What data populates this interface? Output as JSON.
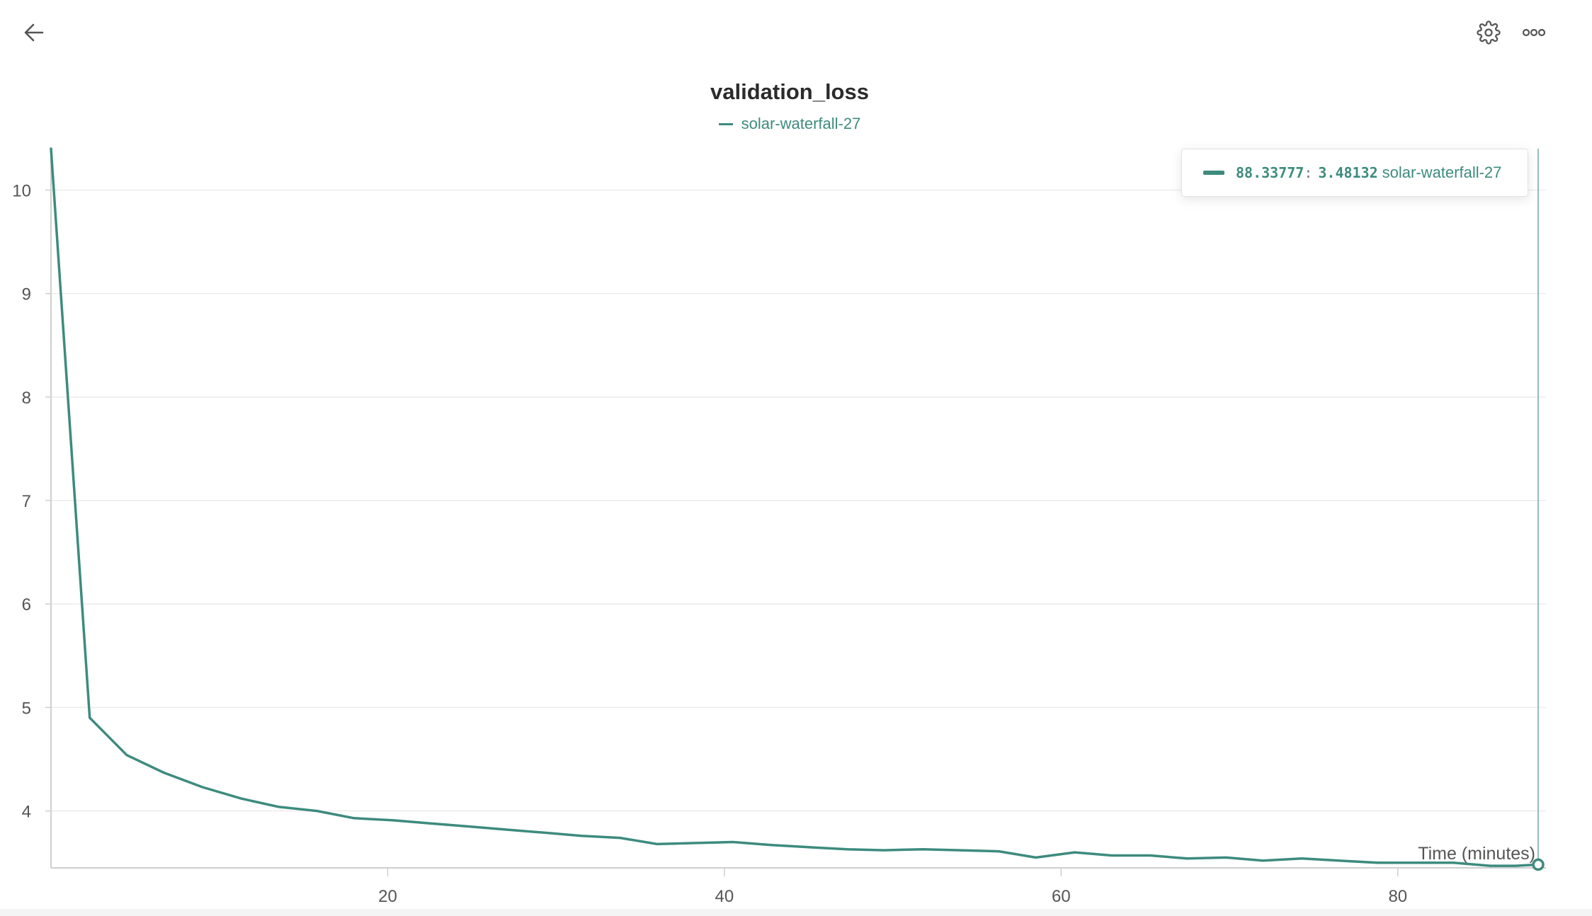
{
  "header": {
    "back_icon": "arrow-left-icon",
    "settings_icon": "gear-icon",
    "more_icon": "more-horizontal-icon"
  },
  "chart_data": {
    "type": "line",
    "title": "validation_loss",
    "xlabel": "Time (minutes)",
    "ylabel": "",
    "xlim": [
      0,
      88.8
    ],
    "ylim": [
      3.45,
      10.4
    ],
    "x_ticks": [
      20,
      40,
      60,
      80
    ],
    "y_ticks": [
      4,
      5,
      6,
      7,
      8,
      9,
      10
    ],
    "grid": true,
    "legend": "top-center",
    "series": [
      {
        "name": "solar-waterfall-27",
        "color": "#3d8b7d",
        "x": [
          0,
          2.3,
          4.5,
          6.7,
          9,
          11.3,
          13.5,
          15.8,
          18,
          20.3,
          22.5,
          24.8,
          27,
          29.3,
          31.5,
          33.8,
          36,
          38.3,
          40.5,
          42.8,
          45,
          47.3,
          49.5,
          51.8,
          54,
          56.3,
          58.5,
          60.8,
          63,
          65.3,
          67.5,
          69.8,
          72,
          74.3,
          76.5,
          78.8,
          81,
          83.3,
          85.5,
          87,
          88.33777
        ],
        "y": [
          10.4,
          4.9,
          4.54,
          4.37,
          4.23,
          4.12,
          4.04,
          4.0,
          3.93,
          3.91,
          3.88,
          3.85,
          3.82,
          3.79,
          3.76,
          3.74,
          3.68,
          3.69,
          3.7,
          3.67,
          3.65,
          3.63,
          3.62,
          3.63,
          3.62,
          3.61,
          3.55,
          3.6,
          3.57,
          3.57,
          3.54,
          3.55,
          3.52,
          3.54,
          3.52,
          3.5,
          3.5,
          3.5,
          3.47,
          3.47,
          3.48132
        ]
      }
    ],
    "tooltip": {
      "x": "88.33777",
      "y": "3.48132",
      "series": "solar-waterfall-27"
    }
  }
}
